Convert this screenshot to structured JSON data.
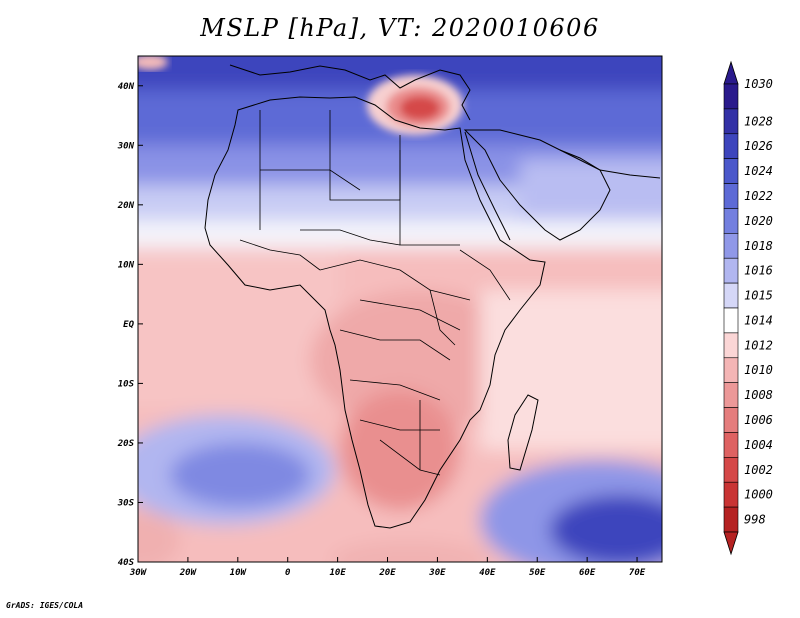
{
  "title": "MSLP [hPa], VT: 2020010606",
  "credit": "GrADS: IGES/COLA",
  "map": {
    "variable": "MSLP",
    "units": "hPa",
    "valid_time": "2020010606",
    "lon_range": [
      -30,
      75
    ],
    "lat_range": [
      -40,
      45
    ],
    "lat_ticks": [
      {
        "lat": 40,
        "label": "40N"
      },
      {
        "lat": 30,
        "label": "30N"
      },
      {
        "lat": 20,
        "label": "20N"
      },
      {
        "lat": 10,
        "label": "10N"
      },
      {
        "lat": 0,
        "label": "EQ"
      },
      {
        "lat": -10,
        "label": "10S"
      },
      {
        "lat": -20,
        "label": "20S"
      },
      {
        "lat": -30,
        "label": "30S"
      },
      {
        "lat": -40,
        "label": "40S"
      }
    ],
    "lon_ticks": [
      {
        "lon": -30,
        "label": "30W"
      },
      {
        "lon": -20,
        "label": "20W"
      },
      {
        "lon": -10,
        "label": "10W"
      },
      {
        "lon": 0,
        "label": "0"
      },
      {
        "lon": 10,
        "label": "10E"
      },
      {
        "lon": 20,
        "label": "20E"
      },
      {
        "lon": 30,
        "label": "30E"
      },
      {
        "lon": 40,
        "label": "40E"
      },
      {
        "lon": 50,
        "label": "50E"
      },
      {
        "lon": 60,
        "label": "60E"
      },
      {
        "lon": 70,
        "label": "70E"
      }
    ]
  },
  "colorbar": {
    "levels": [
      {
        "label": "1030",
        "color": "#2a1a8c"
      },
      {
        "label": "1028",
        "color": "#3331a6"
      },
      {
        "label": "1026",
        "color": "#3d45bd"
      },
      {
        "label": "1024",
        "color": "#4b58cb"
      },
      {
        "label": "1022",
        "color": "#5d6ad6"
      },
      {
        "label": "1020",
        "color": "#737fdf"
      },
      {
        "label": "1018",
        "color": "#9098e8"
      },
      {
        "label": "1016",
        "color": "#b1b6f0"
      },
      {
        "label": "1015",
        "color": "#d5d7f7"
      },
      {
        "label": "1014",
        "color": "#ffffff"
      },
      {
        "label": "1012",
        "color": "#fbd6d6"
      },
      {
        "label": "1010",
        "color": "#f4b5b5"
      },
      {
        "label": "1008",
        "color": "#ec9898"
      },
      {
        "label": "1006",
        "color": "#e57d7d"
      },
      {
        "label": "1004",
        "color": "#de6262"
      },
      {
        "label": "1002",
        "color": "#d54848"
      },
      {
        "label": "1000",
        "color": "#c93434"
      },
      {
        "label": "998",
        "color": "#b52222"
      }
    ]
  }
}
